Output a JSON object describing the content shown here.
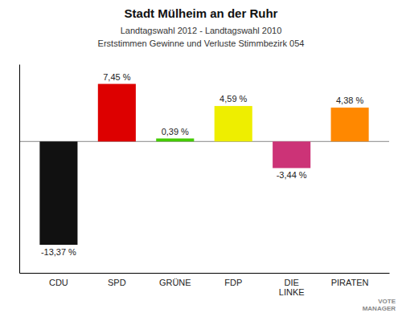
{
  "chart_data": {
    "type": "bar",
    "title": "Stadt Mülheim an der Ruhr",
    "subtitle": [
      "Landtagswahl 2012 - Landtagswahl 2010",
      "Erststimmen Gewinne und Verluste Stimmbezirk 054"
    ],
    "categories": [
      "CDU",
      "SPD",
      "GRÜNE",
      "FDP",
      "DIE\nLINKE",
      "PIRATEN"
    ],
    "values": [
      -13.37,
      7.45,
      0.39,
      4.59,
      -3.44,
      4.38
    ],
    "value_labels": [
      "-13,37 %",
      "7,45 %",
      "0,39 %",
      "4,59 %",
      "-3,44 %",
      "4,38 %"
    ],
    "colors": [
      "#111111",
      "#dd0000",
      "#44cc00",
      "#eeee00",
      "#cc3377",
      "#ff8800"
    ],
    "ylim": [
      -17,
      10
    ],
    "data_labels": true,
    "tick_labels": "x",
    "annotations": [
      "VOTE\nMANAGER"
    ]
  }
}
